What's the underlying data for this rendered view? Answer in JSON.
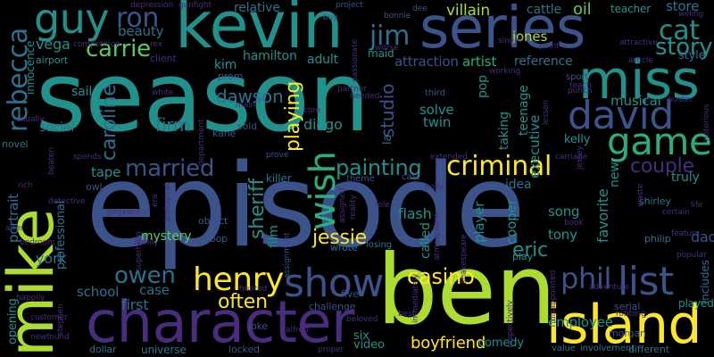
{
  "words": {
    "season": "season",
    "episode": "episode",
    "ben": "ben",
    "kevin": "kevin",
    "series": "series",
    "mike": "mike",
    "character": "character",
    "island": "island",
    "miss": "miss",
    "david": "david",
    "game": "game",
    "guy": "guy",
    "show": "show",
    "list": "list",
    "henry": "henry",
    "criminal": "criminal",
    "rebecca": "rebecca",
    "ron": "ron",
    "jim": "jim",
    "carrie": "carrie",
    "married": "married",
    "owen": "owen",
    "painting": "painting",
    "wish": "wish",
    "cat": "cat",
    "story": "story",
    "phil": "phil",
    "casino": "casino",
    "jessie": "jessie",
    "couple": "couple",
    "playing": "playing",
    "sheriff": "sheriff",
    "often": "often",
    "caroline": "caroline",
    "studio": "studio",
    "firm": "firm",
    "dawson": "dawson",
    "eric": "eric",
    "boyfriend": "boyfriend",
    "beauty": "beauty",
    "attraction": "attraction",
    "artist": "artist",
    "reference": "reference",
    "jones": "jones",
    "villain": "villain",
    "relative": "relative",
    "oil": "oil",
    "store": "store",
    "teacher": "teacher",
    "cattle": "cattle",
    "kim": "kim",
    "hamilton": "hamilton",
    "adult": "adult",
    "vega": "vega",
    "client": "client",
    "maid": "maid",
    "innocence": "innocence",
    "airport": "airport",
    "diego": "diego",
    "solve": "solve",
    "twin": "twin",
    "musical": "musical",
    "kelly": "kelly",
    "truly": "truly",
    "dad": "dad",
    "played": "played",
    "employee": "employee",
    "comedy": "comedy",
    "six": "six",
    "video": "video",
    "first": "first",
    "case": "case",
    "school": "school",
    "york": "york",
    "opening": "opening",
    "portrait": "portrait",
    "professional": "professional",
    "social": "social",
    "sail": "sail",
    "tape": "tape",
    "mystery": "mystery",
    "flash": "flash",
    "idea": "idea",
    "song": "song",
    "tony": "tony",
    "favorite": "favorite",
    "new": "new",
    "cooper": "cooper",
    "player": "player",
    "executive": "executive",
    "teenage": "teenage",
    "taking": "taking",
    "pop": "pop",
    "style": "style",
    "universe": "universe",
    "dollar": "dollar",
    "killer": "killer",
    "la": "la",
    "film": "film",
    "called": "called",
    "includes": "includes",
    "philip": "philip",
    "morgan": "morgan",
    "serial": "serial",
    "notorious": "notorious",
    "shirley": "shirley",
    "certain": "certain",
    "life": "life",
    "popular": "popular",
    "adventure": "adventure",
    "different": "different",
    "value": "value",
    "involvement": "involvement",
    "disappointed": "disappointed",
    "respectively": "respectively",
    "beloved": "beloved",
    "challenge": "challenge",
    "alfred": "alfred",
    "five": "five",
    "hunted": "hunted",
    "joke": "joke",
    "locked": "locked",
    "prove": "prove",
    "wrote": "wrote",
    "losing": "losing",
    "play": "play",
    "assignment": "assignment",
    "loop": "loop",
    "object": "object",
    "pageant": "pageant",
    "detective": "detective",
    "alter": "alter",
    "bedroom": "bedroom",
    "happily": "happily",
    "customer": "customer",
    "newfound": "newfound",
    "department": "department",
    "sold": "sold",
    "kane": "kane",
    "prom": "prom",
    "main": "main",
    "white": "white",
    "usually": "usually",
    "novel": "novel",
    "owl": "owl",
    "spends": "spends",
    "gunfight": "gunfight",
    "depression": "depression",
    "rex": "rex",
    "competition": "competition",
    "project": "project",
    "buy": "buy",
    "passionate": "passionate",
    "bonnie": "bonnie",
    "dee": "dee",
    "worse": "worse",
    "singer": "singer",
    "paint": "paint",
    "attractive": "attractive",
    "article": "article",
    "willing": "willing",
    "working": "working",
    "partner": "partner",
    "needed": "needed",
    "core": "core",
    "third": "third",
    "sport": "sport",
    "teach": "teach",
    "punch": "punch",
    "buster": "buster",
    "lesson": "lesson",
    "carriage": "carriage",
    "jersey": "jersey",
    "extended": "extended",
    "theme": "theme",
    "cast": "cast",
    "holly": "holly",
    "role": "role",
    "assigned": "assigned",
    "reality": "reality",
    "shakespeare": "shakespeare",
    "atmosphere": "atmosphere",
    "book": "book",
    "waste": "waste",
    "feature": "feature",
    "robbing": "robbing",
    "proper": "proper",
    "best": "best",
    "immediately": "immediately",
    "era": "era",
    "biological": "biological",
    "superhero": "superhero",
    "family": "family",
    "stephen": "stephen",
    "beaten": "beaten",
    "rich": "rich"
  },
  "palette": [
    "#440154",
    "#472d7b",
    "#3b528b",
    "#2c728e",
    "#21918c",
    "#28ae80",
    "#5ec962",
    "#addc30",
    "#fde725"
  ]
}
